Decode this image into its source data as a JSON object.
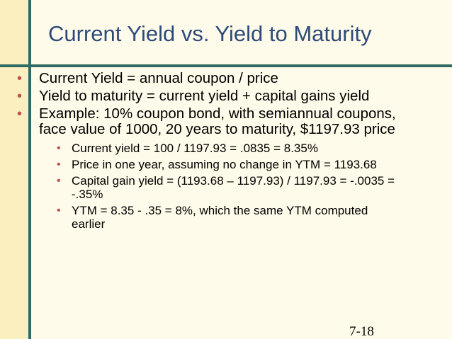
{
  "slide": {
    "title": "Current Yield vs. Yield to Maturity",
    "page_number": "7-18",
    "colors": {
      "title": "#2D4A7A",
      "bullet": "#C0504D",
      "rule": "#2D6A63",
      "background": "#FFFBEA",
      "sidebar": "#FBEFC0"
    },
    "bullets": [
      {
        "text": "Current Yield = annual coupon / price"
      },
      {
        "text": "Yield to maturity = current yield + capital gains yield"
      },
      {
        "text": "Example: 10% coupon bond, with semiannual coupons, face value of 1000, 20 years to maturity, $1197.93 price"
      }
    ],
    "sub_bullets": [
      {
        "text": "Current yield = 100 / 1197.93 = .0835 = 8.35%"
      },
      {
        "text": "Price in one year, assuming no change in YTM = 1193.68"
      },
      {
        "text": "Capital gain yield = (1193.68 – 1197.93) / 1197.93 = -.0035 = -.35%"
      },
      {
        "text": "YTM = 8.35 - .35 = 8%, which the same YTM computed earlier"
      }
    ]
  }
}
